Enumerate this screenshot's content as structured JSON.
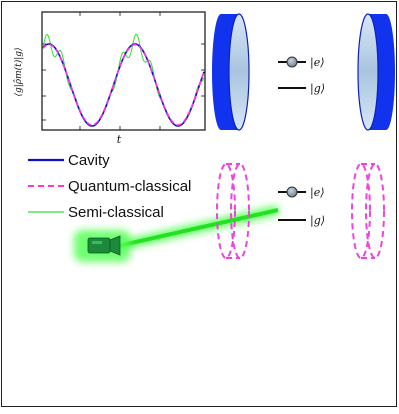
{
  "chart_data": {
    "type": "line",
    "xlabel": "t",
    "ylabel": "⟨g|ρ̂m(t)|g⟩",
    "series": [
      {
        "name": "Cavity",
        "color": "#1010c8",
        "style": "solid"
      },
      {
        "name": "Quantum-classical",
        "color": "#ff33dd",
        "style": "dashed"
      },
      {
        "name": "Semi-classical",
        "color": "#33dd33",
        "style": "solid"
      }
    ],
    "grid": false
  },
  "legend": {
    "cavity": "Cavity",
    "quantum_classical": "Quantum-classical",
    "semi_classical": "Semi-classical"
  },
  "levels": {
    "excited": "|e⟩",
    "ground": "|g⟩"
  },
  "colors": {
    "mirror_blue": "#1133ee",
    "mirror_face": "#b8cfe6",
    "dashed_mirror": "#ee44dd",
    "laser": "#22ee22",
    "atom": "#8899aa"
  }
}
